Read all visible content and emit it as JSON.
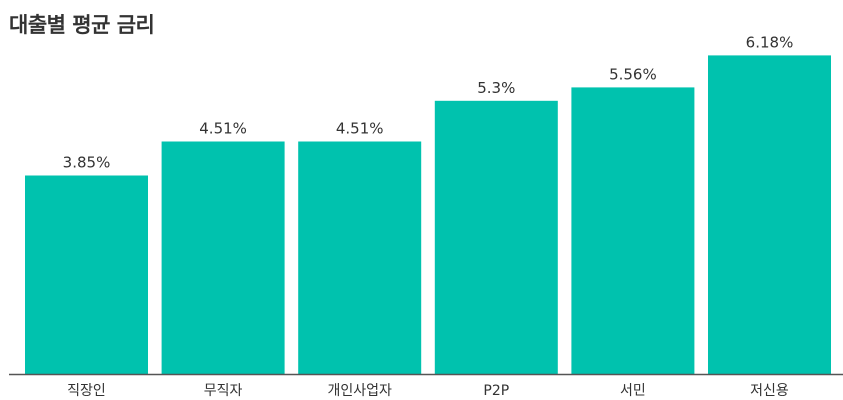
{
  "chart_data": {
    "type": "bar",
    "title": "대출별 평균 금리",
    "categories": [
      "직장인",
      "무직자",
      "개인사업자",
      "P2P",
      "서민",
      "저신용"
    ],
    "values": [
      3.85,
      4.51,
      4.51,
      5.3,
      5.56,
      6.18
    ],
    "value_labels": [
      "3.85%",
      "4.51%",
      "4.51%",
      "5.3%",
      "5.56%",
      "6.18%"
    ],
    "xlabel": "",
    "ylabel": "",
    "grid": false,
    "legend": "none"
  },
  "colors": {
    "bar": "#00c2ae",
    "text": "#333333",
    "axis": "#555555"
  }
}
